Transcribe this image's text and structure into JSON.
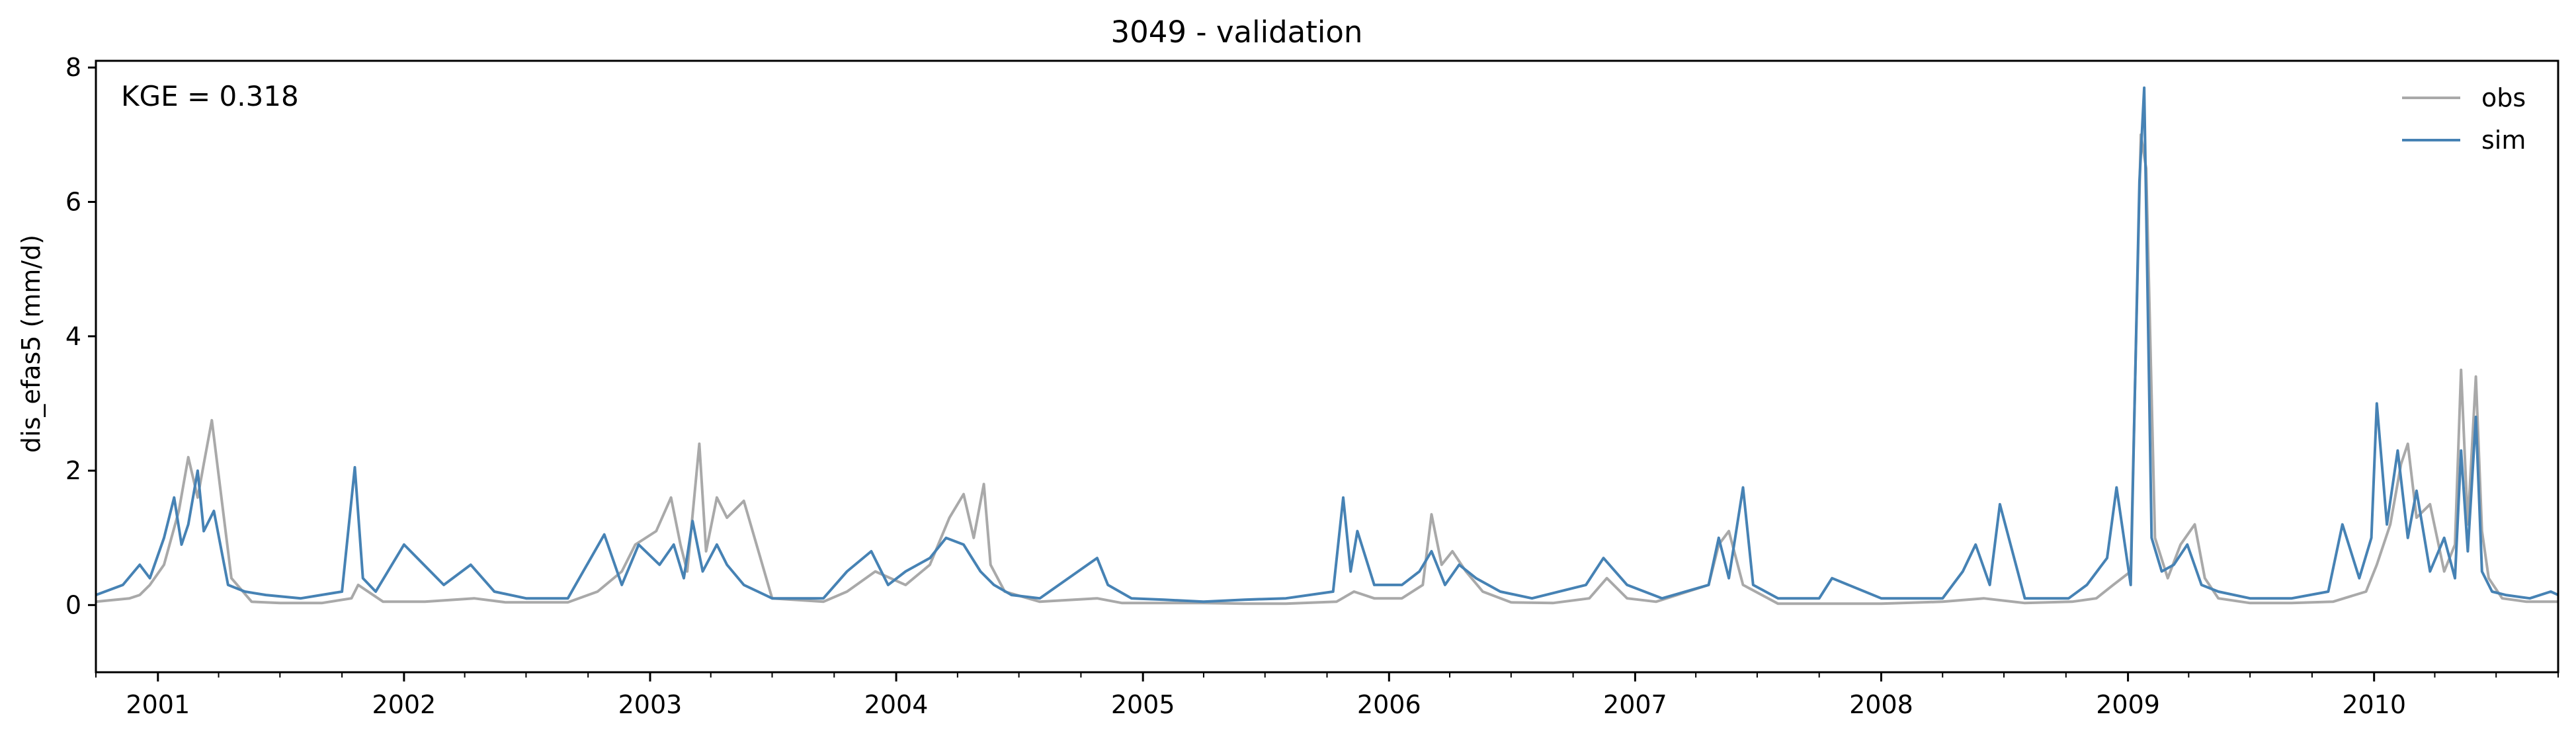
{
  "chart_data": {
    "type": "line",
    "title": "3049 - validation",
    "xlabel": "",
    "ylabel": "dis_efas5 (mm/d)",
    "annotation": "KGE = 0.318",
    "xlim": [
      "2000-10-01",
      "2010-10-01"
    ],
    "ylim": [
      -1.0,
      8.1
    ],
    "y_ticks": [
      0,
      2,
      4,
      6,
      8
    ],
    "x_ticks": [
      "2001",
      "2002",
      "2003",
      "2004",
      "2005",
      "2006",
      "2007",
      "2008",
      "2009",
      "2010"
    ],
    "x_tick_dates": [
      "2001-01-01",
      "2002-01-01",
      "2003-01-01",
      "2004-01-01",
      "2005-01-01",
      "2006-01-01",
      "2007-01-01",
      "2008-01-01",
      "2009-01-01",
      "2010-01-01"
    ],
    "legend_position": "top-right",
    "grid": false,
    "series": [
      {
        "name": "obs",
        "color": "#a9a9a9",
        "x": [
          "2000-10-01",
          "2000-11-20",
          "2000-12-05",
          "2000-12-20",
          "2001-01-10",
          "2001-02-01",
          "2001-02-15",
          "2001-03-01",
          "2001-03-10",
          "2001-03-22",
          "2001-04-20",
          "2001-05-20",
          "2001-07-01",
          "2001-09-01",
          "2001-10-15",
          "2001-10-25",
          "2001-12-01",
          "2002-02-01",
          "2002-04-15",
          "2002-06-01",
          "2002-09-01",
          "2002-10-15",
          "2002-11-20",
          "2002-12-10",
          "2003-01-10",
          "2003-02-01",
          "2003-02-15",
          "2003-02-25",
          "2003-03-15",
          "2003-03-25",
          "2003-04-10",
          "2003-04-25",
          "2003-05-20",
          "2003-07-01",
          "2003-09-15",
          "2003-10-20",
          "2003-12-01",
          "2004-01-15",
          "2004-02-20",
          "2004-03-20",
          "2004-04-10",
          "2004-04-25",
          "2004-05-10",
          "2004-05-20",
          "2004-06-10",
          "2004-08-01",
          "2004-10-25",
          "2004-12-01",
          "2005-02-01",
          "2005-04-01",
          "2005-06-01",
          "2005-08-01",
          "2005-10-15",
          "2005-11-10",
          "2005-12-10",
          "2006-01-20",
          "2006-02-20",
          "2006-03-05",
          "2006-03-20",
          "2006-04-05",
          "2006-04-25",
          "2006-05-20",
          "2006-07-01",
          "2006-09-01",
          "2006-10-25",
          "2006-11-20",
          "2006-12-20",
          "2007-02-01",
          "2007-04-20",
          "2007-05-05",
          "2007-05-20",
          "2007-06-10",
          "2007-08-01",
          "2007-10-01",
          "2008-01-01",
          "2008-04-01",
          "2008-06-01",
          "2008-08-01",
          "2008-10-10",
          "2008-11-15",
          "2008-12-10",
          "2009-01-05",
          "2009-01-20",
          "2009-01-28",
          "2009-02-10",
          "2009-03-01",
          "2009-03-20",
          "2009-04-10",
          "2009-04-25",
          "2009-05-15",
          "2009-07-01",
          "2009-09-01",
          "2009-11-01",
          "2009-12-20",
          "2010-01-05",
          "2010-01-25",
          "2010-02-10",
          "2010-02-20",
          "2010-03-05",
          "2010-03-25",
          "2010-04-15",
          "2010-05-01",
          "2010-05-10",
          "2010-05-20",
          "2010-06-01",
          "2010-06-10",
          "2010-06-20",
          "2010-07-10",
          "2010-08-15",
          "2010-10-01"
        ],
        "y": [
          0.05,
          0.1,
          0.15,
          0.3,
          0.6,
          1.4,
          2.2,
          1.6,
          2.1,
          2.75,
          0.4,
          0.05,
          0.03,
          0.03,
          0.1,
          0.3,
          0.05,
          0.05,
          0.1,
          0.04,
          0.04,
          0.2,
          0.5,
          0.9,
          1.1,
          1.6,
          0.9,
          0.5,
          2.4,
          0.8,
          1.6,
          1.3,
          1.55,
          0.1,
          0.05,
          0.2,
          0.5,
          0.3,
          0.6,
          1.3,
          1.65,
          1.0,
          1.8,
          0.6,
          0.2,
          0.05,
          0.1,
          0.03,
          0.03,
          0.03,
          0.02,
          0.02,
          0.05,
          0.2,
          0.1,
          0.1,
          0.3,
          1.35,
          0.6,
          0.8,
          0.5,
          0.2,
          0.04,
          0.03,
          0.1,
          0.4,
          0.1,
          0.05,
          0.3,
          0.9,
          1.1,
          0.3,
          0.02,
          0.02,
          0.02,
          0.05,
          0.1,
          0.03,
          0.05,
          0.1,
          0.3,
          0.5,
          7.0,
          6.5,
          1.0,
          0.4,
          0.9,
          1.2,
          0.4,
          0.1,
          0.03,
          0.03,
          0.05,
          0.2,
          0.6,
          1.2,
          2.1,
          2.4,
          1.3,
          1.5,
          0.5,
          0.9,
          3.5,
          1.2,
          3.4,
          1.1,
          0.4,
          0.1,
          0.05,
          0.05
        ]
      },
      {
        "name": "sim",
        "color": "#4682b4",
        "x": [
          "2000-10-01",
          "2000-11-10",
          "2000-12-05",
          "2000-12-20",
          "2001-01-10",
          "2001-01-25",
          "2001-02-05",
          "2001-02-15",
          "2001-03-01",
          "2001-03-10",
          "2001-03-25",
          "2001-04-15",
          "2001-05-10",
          "2001-06-10",
          "2001-08-01",
          "2001-10-01",
          "2001-10-20",
          "2001-11-01",
          "2001-11-20",
          "2002-01-01",
          "2002-03-01",
          "2002-04-10",
          "2002-05-15",
          "2002-07-01",
          "2002-09-01",
          "2002-10-25",
          "2002-11-20",
          "2002-12-15",
          "2003-01-15",
          "2003-02-05",
          "2003-02-20",
          "2003-03-05",
          "2003-03-20",
          "2003-04-10",
          "2003-04-25",
          "2003-05-20",
          "2003-07-01",
          "2003-09-15",
          "2003-10-20",
          "2003-11-25",
          "2003-12-20",
          "2004-01-15",
          "2004-02-20",
          "2004-03-15",
          "2004-04-10",
          "2004-05-05",
          "2004-05-25",
          "2004-06-20",
          "2004-08-01",
          "2004-10-25",
          "2004-11-10",
          "2004-12-15",
          "2005-02-01",
          "2005-04-01",
          "2005-06-01",
          "2005-08-01",
          "2005-10-10",
          "2005-10-25",
          "2005-11-05",
          "2005-11-15",
          "2005-12-10",
          "2006-01-20",
          "2006-02-15",
          "2006-03-05",
          "2006-03-25",
          "2006-04-15",
          "2006-05-10",
          "2006-06-15",
          "2006-08-01",
          "2006-10-20",
          "2006-11-15",
          "2006-12-20",
          "2007-02-10",
          "2007-04-20",
          "2007-05-05",
          "2007-05-20",
          "2007-06-10",
          "2007-06-25",
          "2007-08-01",
          "2007-10-01",
          "2007-10-20",
          "2008-01-01",
          "2008-04-01",
          "2008-05-01",
          "2008-05-20",
          "2008-06-10",
          "2008-06-25",
          "2008-08-01",
          "2008-10-05",
          "2008-11-01",
          "2008-12-01",
          "2008-12-15",
          "2009-01-05",
          "2009-01-18",
          "2009-01-25",
          "2009-02-05",
          "2009-02-20",
          "2009-03-10",
          "2009-03-30",
          "2009-04-20",
          "2009-05-15",
          "2009-07-01",
          "2009-09-01",
          "2009-10-25",
          "2009-11-15",
          "2009-12-10",
          "2009-12-28",
          "2010-01-05",
          "2010-01-20",
          "2010-02-05",
          "2010-02-20",
          "2010-03-05",
          "2010-03-25",
          "2010-04-15",
          "2010-05-01",
          "2010-05-10",
          "2010-05-20",
          "2010-06-01",
          "2010-06-10",
          "2010-06-25",
          "2010-07-15",
          "2010-08-20",
          "2010-09-20",
          "2010-10-01"
        ],
        "y": [
          0.15,
          0.3,
          0.6,
          0.4,
          1.0,
          1.6,
          0.9,
          1.2,
          2.0,
          1.1,
          1.4,
          0.3,
          0.2,
          0.15,
          0.1,
          0.2,
          2.05,
          0.4,
          0.2,
          0.9,
          0.3,
          0.6,
          0.2,
          0.1,
          0.1,
          1.05,
          0.3,
          0.9,
          0.6,
          0.9,
          0.4,
          1.25,
          0.5,
          0.9,
          0.6,
          0.3,
          0.1,
          0.1,
          0.5,
          0.8,
          0.3,
          0.5,
          0.7,
          1.0,
          0.9,
          0.5,
          0.3,
          0.15,
          0.1,
          0.7,
          0.3,
          0.1,
          0.08,
          0.05,
          0.08,
          0.1,
          0.2,
          1.6,
          0.5,
          1.1,
          0.3,
          0.3,
          0.5,
          0.8,
          0.3,
          0.6,
          0.4,
          0.2,
          0.1,
          0.3,
          0.7,
          0.3,
          0.1,
          0.3,
          1.0,
          0.4,
          1.75,
          0.3,
          0.1,
          0.1,
          0.4,
          0.1,
          0.1,
          0.5,
          0.9,
          0.3,
          1.5,
          0.1,
          0.1,
          0.3,
          0.7,
          1.75,
          0.3,
          6.3,
          7.7,
          1.0,
          0.5,
          0.6,
          0.9,
          0.3,
          0.2,
          0.1,
          0.1,
          0.2,
          1.2,
          0.4,
          1.0,
          3.0,
          1.2,
          2.3,
          1.0,
          1.7,
          0.5,
          1.0,
          0.4,
          2.3,
          0.8,
          2.8,
          0.5,
          0.2,
          0.15,
          0.1,
          0.2,
          0.15
        ]
      }
    ]
  }
}
